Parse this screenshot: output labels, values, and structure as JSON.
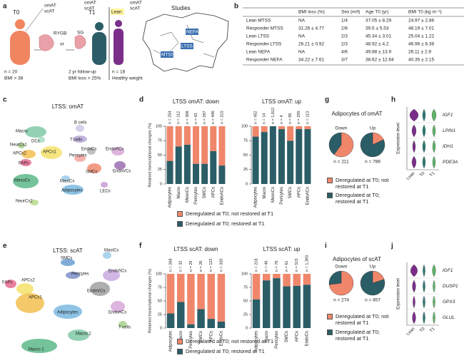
{
  "panel_labels": [
    "a",
    "b",
    "c",
    "d",
    "e",
    "f",
    "g",
    "h",
    "i",
    "j"
  ],
  "schematic": {
    "t0_label": "T0",
    "t0_n": "n = 20",
    "t0_bmi": "BMI > 38",
    "tissues": [
      "omAT",
      "scAT"
    ],
    "surgery_1": "RYGB",
    "or": "or",
    "surgery_2": "SG",
    "t1_label": "T1",
    "followup": "2 yr follow-up",
    "bmi_loss": "BMI loss > 25%",
    "lean_label": "Lean",
    "lean_n": "n = 18",
    "lean_weight": "Healthy weight",
    "studies_title": "Studies",
    "studies": [
      "NEFA",
      "LTSS",
      "MTSS"
    ]
  },
  "table": {
    "headers": [
      "BMI loss (%)",
      "Sex (m/f)",
      "Age T0 (yr)",
      "BMI T0 (kg m⁻²)"
    ],
    "rows": [
      [
        "Lean MTSS",
        "NA",
        "1/4",
        "37.05 ± 8.29",
        "24.97 ± 2.86"
      ],
      [
        "Responder MTSS",
        "31.26 ± 4.77",
        "2/6",
        "39.5 ± 5.53",
        "48.19 ± 7.01"
      ],
      [
        "Lean LTSS",
        "NA",
        "2/3",
        "45.34 ± 3.01",
        "25.04 ± 1.22"
      ],
      [
        "Responder LTSS",
        "26.21 ± 0.92",
        "2/3",
        "48.92 ± 4.2",
        "46.96 ± 6.38"
      ],
      [
        "Lean NEFA",
        "NA",
        "4/6",
        "49.88 ± 13.9",
        "26.11 ± 2.9"
      ],
      [
        "Responder NEFA",
        "34.22 ± 7.61",
        "3/7",
        "38.62 ± 12.64",
        "40.35 ± 2.15"
      ]
    ]
  },
  "umaps": [
    {
      "title": "LTSS: omAT",
      "clusters": [
        {
          "label": "Macro",
          "color": "#7fc9a6"
        },
        {
          "label": "DCs",
          "color": "#a7d9c2"
        },
        {
          "label": "B cells",
          "color": "#c9c9e8"
        },
        {
          "label": "T cells",
          "color": "#b7a7d8"
        },
        {
          "label": "NeurCs1",
          "color": "#a8d08d"
        },
        {
          "label": "APCs2",
          "color": "#f3c04f"
        },
        {
          "label": "APCs1",
          "color": "#f5e26b"
        },
        {
          "label": "FAPs",
          "color": "#e86a8e"
        },
        {
          "label": "Pericytes",
          "color": "#f4a6a0"
        },
        {
          "label": "EndoCs",
          "color": "#b6b6b6"
        },
        {
          "label": "EndoACs",
          "color": "#d8a8d8"
        },
        {
          "label": "EndoVCs",
          "color": "#9a6fb0"
        },
        {
          "label": "MesoCs",
          "color": "#5cb88a"
        },
        {
          "label": "MastCs",
          "color": "#9ccbe8"
        },
        {
          "label": "SMCs",
          "color": "#f08a6e"
        },
        {
          "label": "Adipocytes",
          "color": "#7ab8e0"
        },
        {
          "label": "LECs",
          "color": "#c79bd8"
        },
        {
          "label": "NeurCs2",
          "color": "#b8d88a"
        }
      ]
    },
    {
      "title": "LTSS: scAT",
      "clusters": [
        {
          "label": "SMCs",
          "color": "#6a9fd0"
        },
        {
          "label": "MastCs",
          "color": "#9ccbe8"
        },
        {
          "label": "APCs2",
          "color": "#f5e26b"
        },
        {
          "label": "Pericytes",
          "color": "#7a8fc8"
        },
        {
          "label": "EndoSCs",
          "color": "#c9a8e0"
        },
        {
          "label": "FAPs",
          "color": "#e86a8e"
        },
        {
          "label": "APCs1",
          "color": "#f3c04f"
        },
        {
          "label": "EndoVCs",
          "color": "#a0a0a0"
        },
        {
          "label": "Adipocytes",
          "color": "#7ab8e0"
        },
        {
          "label": "EndoACs",
          "color": "#d8a8d8"
        },
        {
          "label": "T cells",
          "color": "#a8d08d"
        },
        {
          "label": "Macro 2",
          "color": "#7fc9a6"
        },
        {
          "label": "Macro 1",
          "color": "#5cb88a"
        }
      ]
    }
  ],
  "chart_data": [
    {
      "type": "bar",
      "stacked": true,
      "title": "LTSS omAT: down",
      "ylabel": "Retained transcriptional changes (%)",
      "categories": [
        "Adipocytes",
        "Macro",
        "MesoCs",
        "Pericytes",
        "SMCs",
        "APCs",
        "EndoACs"
      ],
      "n_labels": [
        "n = 254",
        "n = 112",
        "n = 308",
        "n = 43",
        "n = 287",
        "n = 446",
        "n = 215"
      ],
      "series": [
        {
          "name": "Deregulated at T0; restored at T1",
          "color": "#2b5d67",
          "values": [
            40,
            65,
            68,
            35,
            35,
            57,
            32
          ]
        },
        {
          "name": "Deregulated at T0; not restored at T1",
          "color": "#f0876b",
          "values": [
            60,
            35,
            32,
            65,
            65,
            43,
            68
          ]
        }
      ],
      "ylim": [
        0,
        100
      ],
      "yticks": [
        0,
        25,
        50,
        75,
        100
      ]
    },
    {
      "type": "bar",
      "stacked": true,
      "title": "LTSS omAT: up",
      "categories": [
        "Adipocytes",
        "Macro",
        "MesoCs",
        "Pericytes",
        "SMCs",
        "APCs",
        "EndoACs"
      ],
      "n_labels": [
        "n = 452",
        "n = 14",
        "n = 1,012",
        "n = 4",
        "n = 85",
        "n = 295",
        "n = 113"
      ],
      "series": [
        {
          "name": "Deregulated at T0; restored at T1",
          "color": "#2b5d67",
          "values": [
            82,
            90,
            100,
            95,
            75,
            95,
            95
          ]
        },
        {
          "name": "Deregulated at T0; not restored at T1",
          "color": "#f0876b",
          "values": [
            18,
            10,
            0,
            5,
            25,
            5,
            5
          ]
        }
      ],
      "ylim": [
        0,
        100
      ],
      "yticks": [
        0,
        25,
        50,
        75,
        100
      ]
    },
    {
      "type": "bar",
      "stacked": true,
      "title": "LTSS scAT: down",
      "ylabel": "Retained transcriptional changes (%)",
      "categories": [
        "Adipocytes",
        "Macro",
        "Pericytes",
        "SMCs",
        "APCs",
        "EndoCs"
      ],
      "n_labels": [
        "n = 268",
        "n = 32",
        "n = 29",
        "n = 26",
        "n = 122",
        "n = 320"
      ],
      "series": [
        {
          "name": "Deregulated at T0; restored at T1",
          "color": "#2b5d67",
          "values": [
            27,
            48,
            7,
            35,
            17,
            12
          ]
        },
        {
          "name": "Deregulated at T0; not restored at T1",
          "color": "#f0876b",
          "values": [
            73,
            52,
            93,
            65,
            83,
            88
          ]
        }
      ],
      "ylim": [
        0,
        100
      ],
      "yticks": [
        0,
        25,
        50,
        75,
        100
      ]
    },
    {
      "type": "bar",
      "stacked": true,
      "title": "LTSS scAT: up",
      "categories": [
        "Adipocytes",
        "Macro",
        "Pericytes",
        "SMCs",
        "APCs",
        "EndoCs"
      ],
      "n_labels": [
        "n = 218",
        "n = 46",
        "n = 76",
        "n = 61",
        "n = 515",
        "n = 1,393"
      ],
      "series": [
        {
          "name": "Deregulated at T0; restored at T1",
          "color": "#2b5d67",
          "values": [
            53,
            88,
            92,
            77,
            78,
            80
          ]
        },
        {
          "name": "Deregulated at T0; not restored at T1",
          "color": "#f0876b",
          "values": [
            47,
            12,
            8,
            23,
            22,
            20
          ]
        }
      ],
      "ylim": [
        0,
        100
      ],
      "yticks": [
        0,
        25,
        50,
        75,
        100
      ]
    },
    {
      "type": "pie",
      "title": "Adipocytes of omAT",
      "series": [
        {
          "name": "Deregulated at T0; not restored at T1",
          "color": "#f0876b"
        },
        {
          "name": "Deregulated at T0; restored at T1",
          "color": "#2b5d67"
        }
      ],
      "pies": [
        {
          "label": "Down",
          "n_label": "n = 211",
          "values": [
            60,
            40
          ]
        },
        {
          "label": "Up",
          "n_label": "n = 786",
          "values": [
            18,
            82
          ]
        }
      ]
    },
    {
      "type": "pie",
      "title": "Adipocytes of scAT",
      "series": [
        {
          "name": "Deregulated at T0; not restored at T1",
          "color": "#f0876b"
        },
        {
          "name": "Deregulated at T0; restored at T1",
          "color": "#2b5d67"
        }
      ],
      "pies": [
        {
          "label": "Down",
          "n_label": "n = 274",
          "values": [
            73,
            27
          ]
        },
        {
          "label": "Up",
          "n_label": "n = 857",
          "values": [
            20,
            80
          ]
        }
      ]
    }
  ],
  "violins": [
    {
      "ylabel": "Expression level",
      "genes": [
        "IGF1",
        "LPIN1",
        "IDH1",
        "PDE3A"
      ],
      "groups": [
        "Lean",
        "T0",
        "T1"
      ],
      "colors": [
        "#7a2e8a",
        "#2b7a78",
        "#5fb36a"
      ]
    },
    {
      "ylabel": "Expression level",
      "genes": [
        "IGF1",
        "DUSP1",
        "GPX3",
        "GLUL"
      ],
      "groups": [
        "Lean",
        "T0",
        "T1"
      ],
      "colors": [
        "#7a2e8a",
        "#2b7a78",
        "#5fb36a"
      ]
    }
  ]
}
